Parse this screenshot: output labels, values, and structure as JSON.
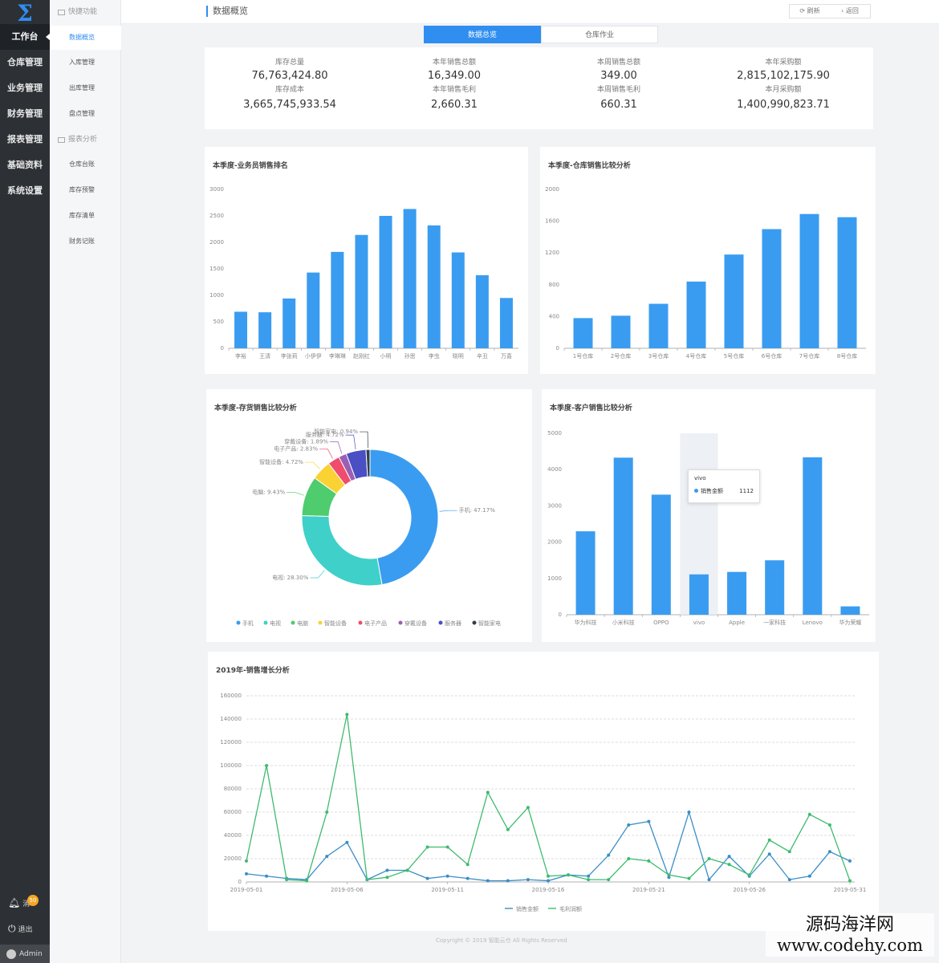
{
  "sidebar": {
    "items": [
      {
        "label": "工作台",
        "active": true
      },
      {
        "label": "仓库管理"
      },
      {
        "label": "业务管理"
      },
      {
        "label": "财务管理"
      },
      {
        "label": "报表管理"
      },
      {
        "label": "基础资料"
      },
      {
        "label": "系统设置"
      }
    ],
    "bottom": {
      "message_label": "消",
      "message_count": "50",
      "logout_label": "退出",
      "user": "Admin"
    }
  },
  "submenu": {
    "group1": "快捷功能",
    "group1_items": [
      "数据概览",
      "入库管理",
      "出库管理",
      "盘点管理"
    ],
    "group2": "报表分析",
    "group2_items": [
      "仓库台账",
      "库存预警",
      "库存清单",
      "财务记账"
    ]
  },
  "header": {
    "title": "数据概览",
    "refresh": "刷新",
    "back": "返回"
  },
  "tabs": [
    {
      "label": "数据总览",
      "active": true
    },
    {
      "label": "仓库作业"
    }
  ],
  "stats": [
    {
      "label": "库存总量",
      "value": "76,763,424.80",
      "label2": "库存成本",
      "value2": "3,665,745,933.54"
    },
    {
      "label": "本年销售总额",
      "value": "16,349.00",
      "label2": "本年销售毛利",
      "value2": "2,660.31"
    },
    {
      "label": "本周销售总额",
      "value": "349.00",
      "label2": "本周销售毛利",
      "value2": "660.31"
    },
    {
      "label": "本年采购额",
      "value": "2,815,102,175.90",
      "label2": "本月采购额",
      "value2": "1,400,990,823.71"
    }
  ],
  "colors": {
    "accent": "#2f8ef0",
    "bar": "#3a9cf0",
    "line_sales": "#3a8ec6",
    "line_profit": "#3dbb6f"
  },
  "chart_data": [
    {
      "type": "bar",
      "title": "本季度-业务员销售排名",
      "categories": [
        "李裕",
        "王清",
        "李张莉",
        "小伊伊",
        "李琳琳",
        "赵刚红",
        "小明",
        "孙思",
        "李虫",
        "晓明",
        "辛丑",
        "万喜"
      ],
      "values": [
        690,
        680,
        940,
        1430,
        1820,
        2140,
        2500,
        2630,
        2320,
        1810,
        1380,
        950
      ],
      "ylim": [
        0,
        3000
      ],
      "yticks": [
        0,
        500,
        1000,
        1500,
        2000,
        2500,
        3000
      ]
    },
    {
      "type": "bar",
      "title": "本季度-仓库销售比较分析",
      "categories": [
        "1号仓库",
        "2号仓库",
        "3号仓库",
        "4号仓库",
        "5号仓库",
        "6号仓库",
        "7号仓库",
        "8号仓库"
      ],
      "values": [
        380,
        410,
        560,
        840,
        1180,
        1500,
        1690,
        1650
      ],
      "ylim": [
        0,
        2000
      ],
      "yticks": [
        0,
        400,
        800,
        1200,
        1600,
        2000
      ]
    },
    {
      "type": "pie",
      "title": "本季度-存货销售比较分析",
      "slices": [
        {
          "name": "手机",
          "value": 47.17,
          "label": "手机: 47.17%",
          "color": "#3a9cf0"
        },
        {
          "name": "电视",
          "value": 28.3,
          "label": "电视: 28.30%",
          "color": "#3fd0c9"
        },
        {
          "name": "电脑",
          "value": 9.43,
          "label": "电脑: 9.43%",
          "color": "#4fcc6e"
        },
        {
          "name": "智能设备",
          "value": 4.72,
          "label": "智能设备: 4.72%",
          "color": "#fad233"
        },
        {
          "name": "电子产品",
          "value": 2.83,
          "label": "电子产品: 2.83%",
          "color": "#ef4c6e"
        },
        {
          "name": "穿戴设备",
          "value": 1.89,
          "label": "穿戴设备: 1.89%",
          "color": "#9a60b4"
        },
        {
          "name": "服务器",
          "value": 4.72,
          "label": "服务器: 4.72%",
          "color": "#4b4fc4"
        },
        {
          "name": "智能家电",
          "value": 0.94,
          "label": "智能家电: 0.94%",
          "color": "#333f4a"
        }
      ]
    },
    {
      "type": "bar",
      "title": "本季度-客户销售比较分析",
      "categories": [
        "华为科技",
        "小米科技",
        "OPPO",
        "vivo",
        "Apple",
        "一家科技",
        "Lenovo",
        "华为荣耀"
      ],
      "values": [
        2300,
        4330,
        3310,
        1112,
        1180,
        1500,
        4340,
        230
      ],
      "ylim": [
        0,
        5000
      ],
      "yticks": [
        0,
        1000,
        2000,
        3000,
        4000,
        5000
      ],
      "tooltip": {
        "title": "vivo",
        "series": "销售金额",
        "value": "1112"
      }
    },
    {
      "type": "line",
      "title": "2019年-销售增长分析",
      "x": [
        "2019-05-01",
        "2019-05-02",
        "2019-05-03",
        "2019-05-04",
        "2019-05-05",
        "2019-05-06",
        "2019-05-07",
        "2019-05-08",
        "2019-05-09",
        "2019-05-10",
        "2019-05-11",
        "2019-05-12",
        "2019-05-13",
        "2019-05-14",
        "2019-05-15",
        "2019-05-16",
        "2019-05-17",
        "2019-05-18",
        "2019-05-19",
        "2019-05-20",
        "2019-05-21",
        "2019-05-22",
        "2019-05-23",
        "2019-05-24",
        "2019-05-25",
        "2019-05-26",
        "2019-05-27",
        "2019-05-28",
        "2019-05-29",
        "2019-05-30",
        "2019-05-31"
      ],
      "xticks": [
        "2019-05-01",
        "2019-05-06",
        "2019-05-11",
        "2019-05-16",
        "2019-05-21",
        "2019-05-26",
        "2019-05-31"
      ],
      "ylim": [
        0,
        160000
      ],
      "yticks": [
        0,
        20000,
        40000,
        60000,
        80000,
        100000,
        120000,
        140000,
        160000
      ],
      "series": [
        {
          "name": "销售金额",
          "values": [
            7000,
            5000,
            3000,
            2000,
            22000,
            34000,
            2000,
            10000,
            10000,
            3000,
            5000,
            3000,
            1000,
            1000,
            2000,
            1000,
            6000,
            5000,
            23000,
            49000,
            52000,
            4000,
            60000,
            2000,
            22000,
            5000,
            24000,
            2000,
            5000,
            26000,
            18000
          ]
        },
        {
          "name": "毛利润额",
          "values": [
            18000,
            100000,
            2000,
            1000,
            60000,
            144000,
            2000,
            4000,
            10000,
            30000,
            30000,
            15000,
            77000,
            45000,
            64000,
            5000,
            6000,
            2000,
            2000,
            20000,
            18000,
            6000,
            3000,
            20000,
            15000,
            6000,
            36000,
            26000,
            58000,
            49000,
            1000
          ]
        }
      ]
    }
  ],
  "footer": {
    "copyright": "Copyright © 2019 智能云仓 All Rights Reserved"
  },
  "watermark": {
    "line1": "源码海洋网",
    "line2": "www.codehy.com"
  }
}
